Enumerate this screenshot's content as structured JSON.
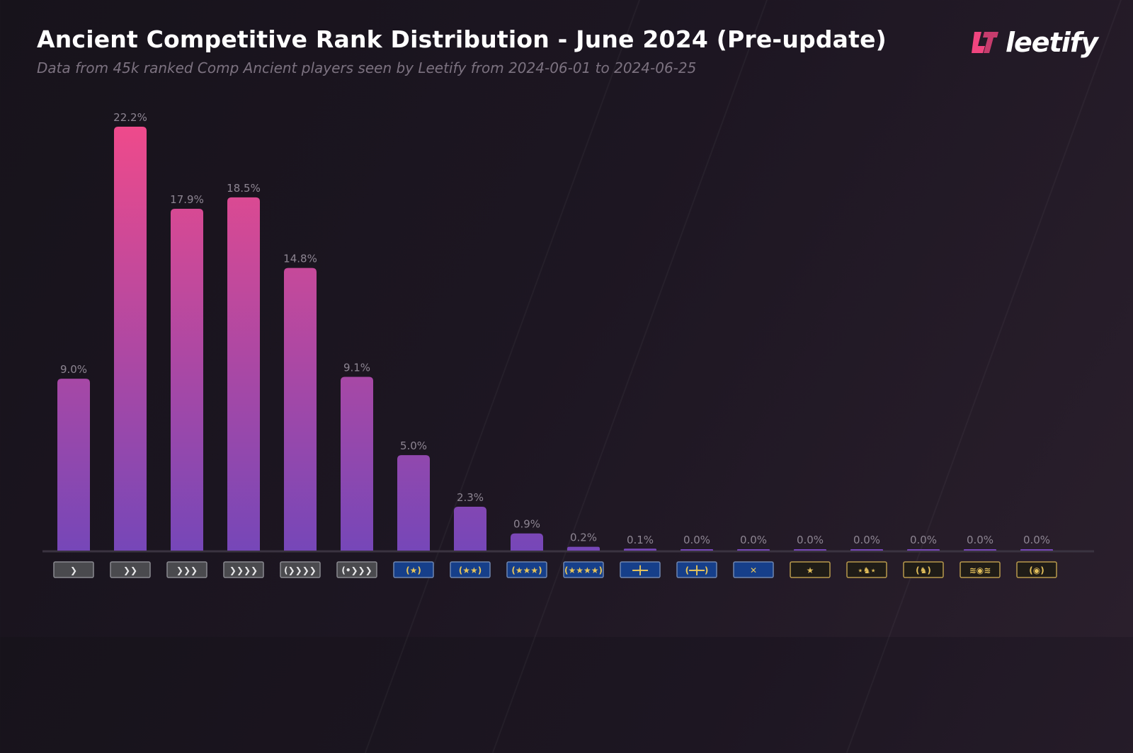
{
  "header": {
    "title": "Ancient Competitive Rank Distribution - June 2024 (Pre-update)",
    "subtitle": "Data from 45k ranked Comp Ancient players seen by Leetify from 2024-06-01 to 2024-06-25",
    "brand": "leetify"
  },
  "colors": {
    "bar_top": "#ee4a8b",
    "bar_bottom": "#7647b8",
    "label": "#8d8592",
    "brand": "#f0457f"
  },
  "chart_data": {
    "type": "bar",
    "title": "Ancient Competitive Rank Distribution - June 2024 (Pre-update)",
    "ylim": [
      0,
      22.2
    ],
    "grid": false,
    "categories": [
      "silver-1",
      "silver-2",
      "silver-3",
      "silver-4",
      "silver-elite",
      "silver-elite-master",
      "gold-nova-1",
      "gold-nova-2",
      "gold-nova-3",
      "gold-nova-master",
      "master-guardian-1",
      "master-guardian-2",
      "master-guardian-elite",
      "distinguished-master-guardian",
      "legendary-eagle",
      "legendary-eagle-master",
      "supreme-master-first-class",
      "global-elite"
    ],
    "values": [
      9.0,
      22.2,
      17.9,
      18.5,
      14.8,
      9.1,
      5.0,
      2.3,
      0.9,
      0.2,
      0.1,
      0.0,
      0.0,
      0.0,
      0.0,
      0.0,
      0.0,
      0.0
    ],
    "labels": [
      "9.0%",
      "22.2%",
      "17.9%",
      "18.5%",
      "14.8%",
      "9.1%",
      "5.0%",
      "2.3%",
      "0.9%",
      "0.2%",
      "0.1%",
      "0.0%",
      "0.0%",
      "0.0%",
      "0.0%",
      "0.0%",
      "0.0%",
      "0.0%"
    ],
    "badges": [
      {
        "tier": "silver",
        "glyph": "❯"
      },
      {
        "tier": "silver",
        "glyph": "❯❯"
      },
      {
        "tier": "silver",
        "glyph": "❯❯❯"
      },
      {
        "tier": "silver",
        "glyph": "❯❯❯❯"
      },
      {
        "tier": "silver",
        "glyph": "(❯❯❯❯"
      },
      {
        "tier": "silver",
        "glyph": "(•❯❯❯"
      },
      {
        "tier": "nova",
        "glyph": "(★)"
      },
      {
        "tier": "nova",
        "glyph": "(★★)"
      },
      {
        "tier": "nova",
        "glyph": "(★★★)"
      },
      {
        "tier": "nova",
        "glyph": "(★★★★)"
      },
      {
        "tier": "nova",
        "glyph": "━╋━"
      },
      {
        "tier": "nova",
        "glyph": "(━╋━)"
      },
      {
        "tier": "nova",
        "glyph": "✕"
      },
      {
        "tier": "elite",
        "glyph": "★"
      },
      {
        "tier": "elite",
        "glyph": "⋆♞⋆"
      },
      {
        "tier": "elite",
        "glyph": "(♞)"
      },
      {
        "tier": "elite",
        "glyph": "≋◉≋"
      },
      {
        "tier": "elite",
        "glyph": "(◉)"
      }
    ]
  }
}
